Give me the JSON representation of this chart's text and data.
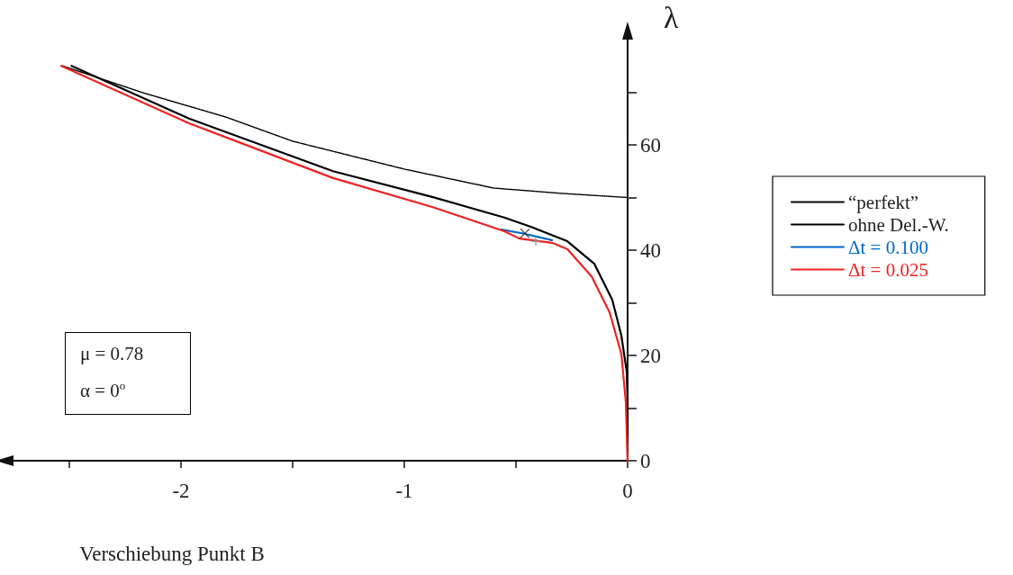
{
  "chart_data": {
    "type": "line",
    "xlabel": "Verschiebung Punkt B",
    "ylabel": "λ",
    "xlim": [
      -2.75,
      0
    ],
    "ylim": [
      0,
      80
    ],
    "xticks": [
      {
        "value": -2.5,
        "label": null
      },
      -2,
      {
        "value": -1.5,
        "label": null
      },
      -1,
      {
        "value": -0.5,
        "label": null
      },
      0
    ],
    "yticks": [
      0,
      {
        "value": 10,
        "label": null
      },
      20,
      {
        "value": 30,
        "label": null
      },
      40,
      {
        "value": 50,
        "label": null
      },
      60,
      {
        "value": 70,
        "label": null
      }
    ],
    "grid": false,
    "legend": "right",
    "marker": "none",
    "annotations": [
      "μ = 0.78",
      "α = 0$^{o}$"
    ],
    "series": [
      {
        "name": "“perfekt”",
        "color": "#000000",
        "line_style": "dotted",
        "x": [
          -2.53,
          -2.17,
          -1.8,
          -1.5,
          -1.0,
          -0.6,
          -0.3,
          0
        ],
        "values": [
          75,
          69.9,
          65.3,
          60.7,
          55.4,
          51.8,
          50.8,
          50
        ]
      },
      {
        "name": "ohne Del.-W.",
        "color": "#000000",
        "line_style": "solid",
        "x": [
          -2.49,
          -1.964,
          -1.319,
          -0.875,
          -0.552,
          -0.431,
          -0.27,
          -0.149,
          -0.069,
          -0.028,
          -0.004,
          0,
          0
        ],
        "values": [
          75,
          65,
          55,
          50.1,
          46.2,
          44.4,
          41.7,
          37.4,
          30.6,
          23.8,
          16.9,
          11,
          0
        ]
      },
      {
        "name": "Δt = 0.100",
        "color": "#0066cc",
        "line_style": "solid",
        "x": [
          -0.565,
          -0.472,
          -0.339
        ],
        "values": [
          43.9,
          43.2,
          41.9
        ]
      },
      {
        "name": "Δt = 0.025",
        "color": "#ee2222",
        "line_style": "solid",
        "x": [
          -2.536,
          -1.964,
          -1.319,
          -0.875,
          -0.552,
          -0.484,
          -0.339,
          -0.27,
          -0.161,
          -0.081,
          -0.028,
          -0.008,
          0
        ],
        "values": [
          75,
          64.1,
          53.7,
          48.2,
          43.6,
          42.2,
          41.4,
          40.2,
          35,
          28.2,
          20.3,
          11.1,
          0
        ]
      },
      {
        "type": "scatter",
        "color": "#333333",
        "marker": "cross",
        "x": [
          -0.46
        ],
        "values": [
          43.2
        ]
      },
      {
        "type": "scatter",
        "color": "#888888",
        "marker": "plus",
        "x": [
          -0.411
        ],
        "values": [
          41.7
        ]
      }
    ]
  }
}
